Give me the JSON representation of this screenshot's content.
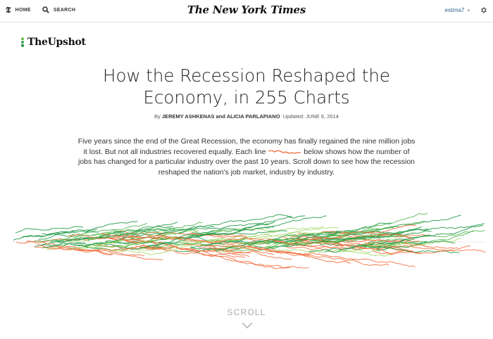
{
  "header": {
    "t_logo": "𝕿",
    "home_label": "HOME",
    "search_label": "SEARCH",
    "masthead": "The New York Times",
    "username": "estima7",
    "icons": {
      "home": "t-logo-icon",
      "search": "search-icon",
      "user_caret": "chevron-down-icon",
      "settings": "gear-icon"
    }
  },
  "section": {
    "name": "TheUpshot"
  },
  "article": {
    "headline_line1": "How the Recession Reshaped the",
    "headline_line2": "Economy, in 255 Charts",
    "byline_prefix": "By ",
    "byline_names": "JEREMY ASHKENAS and ALICIA PARLAPIANO",
    "updated": "Updated: JUNE 6, 2014",
    "lede_part1": "Five years since the end of the Great Recession, the economy has finally regained the nine million jobs it lost. But not all industries recovered equally. Each line",
    "lede_part2": "below shows how the number of jobs has changed for a particular industry over the past 10 years. Scroll down to see how the recession reshaped the nation's job market, industry by industry."
  },
  "chart_data": {
    "type": "line",
    "title": "",
    "series_count": 255,
    "colors": {
      "decline": "#f26b3a",
      "growth_strong": "#1a9641",
      "growth_mid": "#4cb54c",
      "growth_light": "#a6d96a",
      "baseline": "#cccccc"
    },
    "xlabel": "",
    "ylabel": ""
  },
  "scroll": {
    "label": "SCROLL"
  }
}
